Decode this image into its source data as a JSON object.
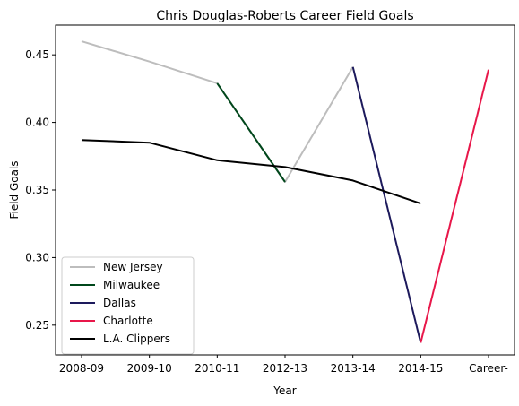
{
  "chart_data": {
    "type": "line",
    "title": "Chris Douglas-Roberts Career Field Goals",
    "xlabel": "Year",
    "ylabel": "Field Goals",
    "categories": [
      "2008-09",
      "2009-10",
      "2010-11",
      "2012-13",
      "2013-14",
      "2014-15",
      "Career-"
    ],
    "ylim": [
      0.228,
      0.472
    ],
    "yticks": [
      0.25,
      0.3,
      0.35,
      0.4,
      0.45
    ],
    "ytick_labels": [
      "0.25",
      "0.30",
      "0.35",
      "0.40",
      "0.45"
    ],
    "grid": false,
    "legend_position": "lower-left",
    "series": [
      {
        "name": "New Jersey",
        "color": "#bdbdbd",
        "points": [
          [
            0,
            0.46
          ],
          [
            1,
            0.445
          ],
          [
            2,
            0.429
          ],
          [
            3,
            0.356
          ],
          [
            4,
            0.441
          ]
        ]
      },
      {
        "name": "Milwaukee",
        "color": "#00471b",
        "points": [
          [
            2,
            0.429
          ],
          [
            3,
            0.356
          ]
        ]
      },
      {
        "name": "Dallas",
        "color": "#1d1a5c",
        "points": [
          [
            4,
            0.441
          ],
          [
            5,
            0.237
          ]
        ]
      },
      {
        "name": "Charlotte",
        "color": "#e8174a",
        "points": [
          [
            5,
            0.237
          ],
          [
            6,
            0.439
          ]
        ]
      },
      {
        "name": "L.A. Clippers",
        "color": "#000000",
        "points": [
          [
            0,
            0.387
          ],
          [
            1,
            0.385
          ],
          [
            2,
            0.372
          ],
          [
            3,
            0.367
          ],
          [
            4,
            0.357
          ],
          [
            5,
            0.34
          ]
        ]
      }
    ]
  }
}
